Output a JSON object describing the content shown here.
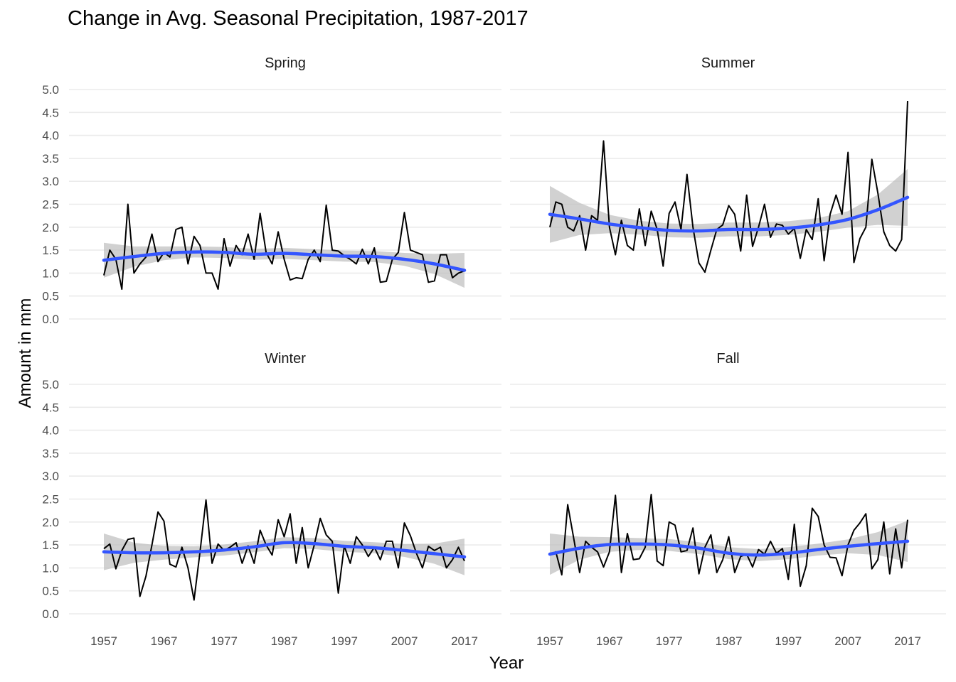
{
  "chart_data": {
    "type": "line",
    "title": "Change in Avg. Seasonal Precipitation, 1987-2017",
    "xlabel": "Year",
    "ylabel": "Amount in mm",
    "xlim": [
      1957,
      2017
    ],
    "ylim": [
      0,
      5
    ],
    "x_ticks": [
      1957,
      1967,
      1977,
      1987,
      1997,
      2007,
      2017
    ],
    "y_ticks": [
      "0.0",
      "0.5",
      "1.0",
      "1.5",
      "2.0",
      "2.5",
      "3.0",
      "3.5",
      "4.0",
      "4.5",
      "5.0"
    ],
    "grid": true,
    "colors": {
      "series": "#000000",
      "smooth": "#3355ff",
      "band": "#bdbdbd",
      "grid": "#ebebeb"
    },
    "panels": [
      {
        "name": "Spring",
        "x": [
          1957,
          1958,
          1959,
          1960,
          1961,
          1962,
          1963,
          1964,
          1965,
          1966,
          1967,
          1968,
          1969,
          1970,
          1971,
          1972,
          1973,
          1974,
          1975,
          1976,
          1977,
          1978,
          1979,
          1980,
          1981,
          1982,
          1983,
          1984,
          1985,
          1986,
          1987,
          1988,
          1989,
          1990,
          1991,
          1992,
          1993,
          1994,
          1995,
          1996,
          1997,
          1998,
          1999,
          2000,
          2001,
          2002,
          2003,
          2004,
          2005,
          2006,
          2007,
          2008,
          2009,
          2010,
          2011,
          2012,
          2013,
          2014,
          2015,
          2016,
          2017
        ],
        "values": [
          0.95,
          1.5,
          1.3,
          0.65,
          2.5,
          1.0,
          1.2,
          1.35,
          1.85,
          1.25,
          1.45,
          1.35,
          1.95,
          2.0,
          1.2,
          1.8,
          1.6,
          1.0,
          1.0,
          0.65,
          1.75,
          1.15,
          1.6,
          1.4,
          1.85,
          1.3,
          2.3,
          1.45,
          1.2,
          1.9,
          1.3,
          0.85,
          0.9,
          0.88,
          1.3,
          1.5,
          1.25,
          2.48,
          1.5,
          1.48,
          1.38,
          1.3,
          1.2,
          1.52,
          1.2,
          1.55,
          0.8,
          0.82,
          1.3,
          1.45,
          2.32,
          1.5,
          1.45,
          1.4,
          0.8,
          0.83,
          1.4,
          1.4,
          0.9,
          1.0,
          1.05
        ],
        "smooth": [
          [
            1957,
            1.28
          ],
          [
            1962,
            1.36
          ],
          [
            1967,
            1.43
          ],
          [
            1972,
            1.46
          ],
          [
            1977,
            1.45
          ],
          [
            1982,
            1.41
          ],
          [
            1987,
            1.43
          ],
          [
            1992,
            1.4
          ],
          [
            1997,
            1.37
          ],
          [
            2002,
            1.36
          ],
          [
            2007,
            1.3
          ],
          [
            2012,
            1.2
          ],
          [
            2017,
            1.06
          ]
        ],
        "band_width": [
          0.38,
          0.22,
          0.15,
          0.12,
          0.12,
          0.12,
          0.12,
          0.12,
          0.12,
          0.12,
          0.14,
          0.22,
          0.38
        ]
      },
      {
        "name": "Summer",
        "x": [
          1957,
          1958,
          1959,
          1960,
          1961,
          1962,
          1963,
          1964,
          1965,
          1966,
          1967,
          1968,
          1969,
          1970,
          1971,
          1972,
          1973,
          1974,
          1975,
          1976,
          1977,
          1978,
          1979,
          1980,
          1981,
          1982,
          1983,
          1984,
          1985,
          1986,
          1987,
          1988,
          1989,
          1990,
          1991,
          1992,
          1993,
          1994,
          1995,
          1996,
          1997,
          1998,
          1999,
          2000,
          2001,
          2002,
          2003,
          2004,
          2005,
          2006,
          2007,
          2008,
          2009,
          2010,
          2011,
          2012,
          2013,
          2014,
          2015,
          2016,
          2017
        ],
        "values": [
          2.0,
          2.55,
          2.5,
          2.0,
          1.92,
          2.25,
          1.5,
          2.25,
          2.15,
          3.88,
          2.0,
          1.4,
          2.15,
          1.6,
          1.5,
          2.4,
          1.6,
          2.35,
          1.95,
          1.15,
          2.3,
          2.55,
          1.95,
          3.15,
          2.0,
          1.22,
          1.02,
          1.5,
          1.95,
          2.05,
          2.47,
          2.28,
          1.48,
          2.7,
          1.58,
          2.0,
          2.5,
          1.78,
          2.07,
          2.04,
          1.85,
          1.97,
          1.32,
          1.95,
          1.73,
          2.62,
          1.27,
          2.28,
          2.7,
          2.28,
          3.63,
          1.23,
          1.75,
          2.0,
          3.48,
          2.75,
          1.9,
          1.6,
          1.48,
          1.73,
          4.75
        ],
        "smooth": [
          [
            1957,
            2.28
          ],
          [
            1962,
            2.18
          ],
          [
            1967,
            2.07
          ],
          [
            1972,
            1.99
          ],
          [
            1977,
            1.93
          ],
          [
            1982,
            1.92
          ],
          [
            1987,
            1.95
          ],
          [
            1992,
            1.95
          ],
          [
            1997,
            1.98
          ],
          [
            2002,
            2.05
          ],
          [
            2007,
            2.17
          ],
          [
            2012,
            2.38
          ],
          [
            2017,
            2.65
          ]
        ],
        "band_width": [
          0.62,
          0.35,
          0.2,
          0.15,
          0.15,
          0.15,
          0.15,
          0.15,
          0.15,
          0.15,
          0.18,
          0.33,
          0.62
        ]
      },
      {
        "name": "Winter",
        "x": [
          1957,
          1958,
          1959,
          1960,
          1961,
          1962,
          1963,
          1964,
          1965,
          1966,
          1967,
          1968,
          1969,
          1970,
          1971,
          1972,
          1973,
          1974,
          1975,
          1976,
          1977,
          1978,
          1979,
          1980,
          1981,
          1982,
          1983,
          1984,
          1985,
          1986,
          1987,
          1988,
          1989,
          1990,
          1991,
          1992,
          1993,
          1994,
          1995,
          1996,
          1997,
          1998,
          1999,
          2000,
          2001,
          2002,
          2003,
          2004,
          2005,
          2006,
          2007,
          2008,
          2009,
          2010,
          2011,
          2012,
          2013,
          2014,
          2015,
          2016,
          2017
        ],
        "values": [
          1.42,
          1.52,
          0.98,
          1.38,
          1.62,
          1.65,
          0.38,
          0.82,
          1.5,
          2.22,
          2.02,
          1.08,
          1.02,
          1.45,
          1.0,
          0.3,
          1.35,
          2.48,
          1.1,
          1.52,
          1.38,
          1.45,
          1.55,
          1.1,
          1.48,
          1.1,
          1.82,
          1.5,
          1.28,
          2.05,
          1.68,
          2.18,
          1.1,
          1.88,
          1.0,
          1.5,
          2.08,
          1.72,
          1.58,
          0.45,
          1.48,
          1.1,
          1.68,
          1.5,
          1.25,
          1.45,
          1.18,
          1.58,
          1.58,
          1.0,
          1.98,
          1.7,
          1.32,
          1.0,
          1.47,
          1.38,
          1.45,
          1.0,
          1.18,
          1.45,
          1.15
        ],
        "smooth": [
          [
            1957,
            1.35
          ],
          [
            1962,
            1.33
          ],
          [
            1967,
            1.33
          ],
          [
            1972,
            1.35
          ],
          [
            1977,
            1.39
          ],
          [
            1982,
            1.46
          ],
          [
            1987,
            1.55
          ],
          [
            1992,
            1.53
          ],
          [
            1997,
            1.47
          ],
          [
            2002,
            1.44
          ],
          [
            2007,
            1.38
          ],
          [
            2012,
            1.31
          ],
          [
            2017,
            1.24
          ]
        ],
        "band_width": [
          0.4,
          0.22,
          0.15,
          0.12,
          0.12,
          0.12,
          0.12,
          0.12,
          0.12,
          0.12,
          0.14,
          0.22,
          0.4
        ]
      },
      {
        "name": "Fall",
        "x": [
          1957,
          1958,
          1959,
          1960,
          1961,
          1962,
          1963,
          1964,
          1965,
          1966,
          1967,
          1968,
          1969,
          1970,
          1971,
          1972,
          1973,
          1974,
          1975,
          1976,
          1977,
          1978,
          1979,
          1980,
          1981,
          1982,
          1983,
          1984,
          1985,
          1986,
          1987,
          1988,
          1989,
          1990,
          1991,
          1992,
          1993,
          1994,
          1995,
          1996,
          1997,
          1998,
          1999,
          2000,
          2001,
          2002,
          2003,
          2004,
          2005,
          2006,
          2007,
          2008,
          2009,
          2010,
          2011,
          2012,
          2013,
          2014,
          2015,
          2016,
          2017
        ],
        "values": [
          1.28,
          1.35,
          0.85,
          2.38,
          1.65,
          0.9,
          1.58,
          1.45,
          1.35,
          1.02,
          1.35,
          2.58,
          0.9,
          1.75,
          1.18,
          1.2,
          1.45,
          2.6,
          1.15,
          1.05,
          2.0,
          1.93,
          1.35,
          1.38,
          1.87,
          0.87,
          1.45,
          1.72,
          0.9,
          1.18,
          1.68,
          0.9,
          1.25,
          1.3,
          1.02,
          1.4,
          1.3,
          1.58,
          1.32,
          1.42,
          0.75,
          1.95,
          0.6,
          1.05,
          2.3,
          2.12,
          1.5,
          1.23,
          1.22,
          0.83,
          1.5,
          1.82,
          1.98,
          2.18,
          0.98,
          1.18,
          2.0,
          0.87,
          1.85,
          1.0,
          2.05
        ],
        "smooth": [
          [
            1957,
            1.3
          ],
          [
            1962,
            1.43
          ],
          [
            1967,
            1.51
          ],
          [
            1972,
            1.52
          ],
          [
            1977,
            1.5
          ],
          [
            1982,
            1.43
          ],
          [
            1987,
            1.32
          ],
          [
            1992,
            1.28
          ],
          [
            1997,
            1.32
          ],
          [
            2002,
            1.4
          ],
          [
            2007,
            1.47
          ],
          [
            2012,
            1.53
          ],
          [
            2017,
            1.58
          ]
        ],
        "band_width": [
          0.45,
          0.25,
          0.16,
          0.13,
          0.13,
          0.13,
          0.13,
          0.13,
          0.13,
          0.13,
          0.15,
          0.25,
          0.45
        ]
      }
    ]
  }
}
